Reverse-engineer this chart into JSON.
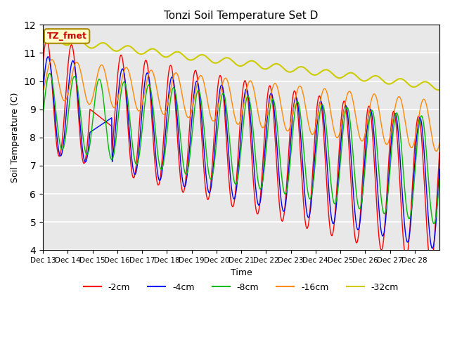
{
  "title": "Tonzi Soil Temperature Set D",
  "xlabel": "Time",
  "ylabel": "Soil Temperature (C)",
  "ylim": [
    4.0,
    12.0
  ],
  "yticks": [
    4.0,
    5.0,
    6.0,
    7.0,
    8.0,
    9.0,
    10.0,
    11.0,
    12.0
  ],
  "legend_label": "TZ_fmet",
  "series_labels": [
    "-2cm",
    "-4cm",
    "-8cm",
    "-16cm",
    "-32cm"
  ],
  "series_colors": [
    "#ff0000",
    "#0000ff",
    "#00bb00",
    "#ff8800",
    "#cccc00"
  ],
  "background_color": "#e8e8e8",
  "days": [
    "Dec 13",
    "Dec 14",
    "Dec 15",
    "Dec 16",
    "Dec 17",
    "Dec 18",
    "Dec 19",
    "Dec 20",
    "Dec 21",
    "Dec 22",
    "Dec 23",
    "Dec 24",
    "Dec 25",
    "Dec 26",
    "Dec 27",
    "Dec 28"
  ]
}
